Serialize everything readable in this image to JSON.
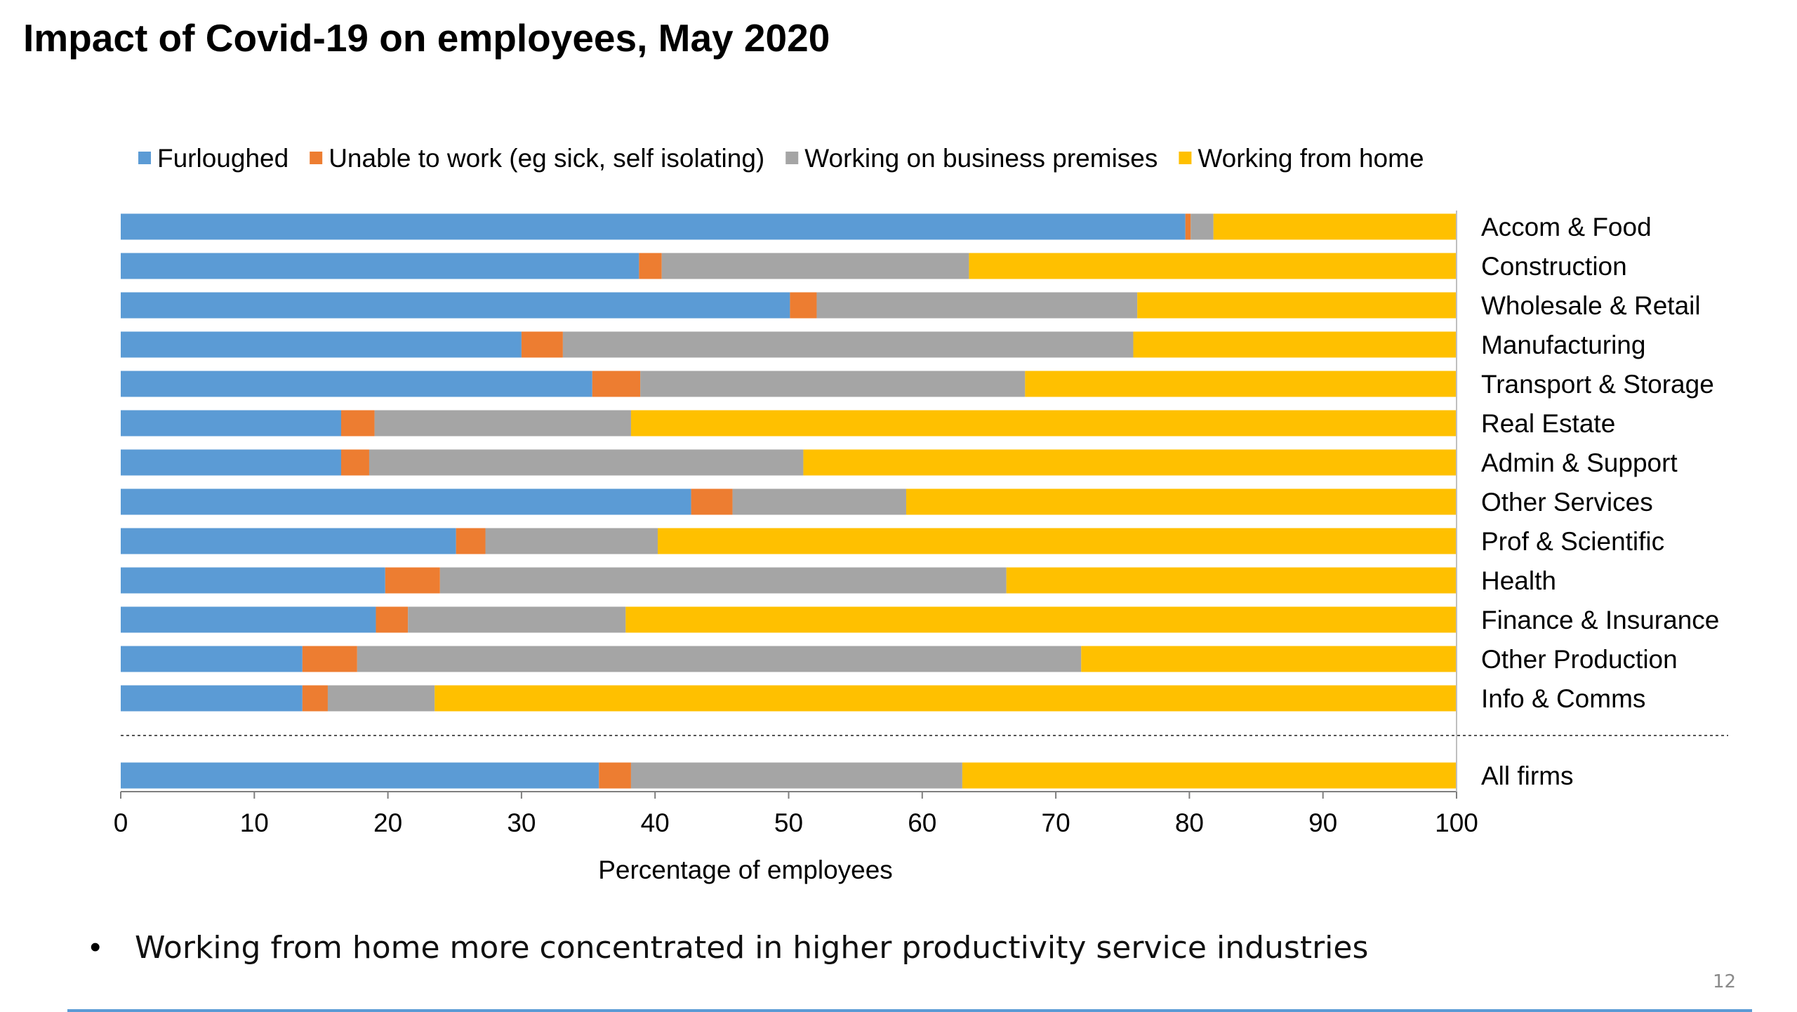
{
  "slide": {
    "title": "Impact of Covid-19 on employees, May 2020",
    "bullet_marker": "•",
    "bullet": "Working from home more concentrated in higher productivity service industries",
    "page_number": "12"
  },
  "chart_data": {
    "type": "bar",
    "orientation": "horizontal",
    "stacked": true,
    "title": "",
    "xlabel": "Percentage of employees",
    "ylabel": "",
    "xlim": [
      0,
      100
    ],
    "xticks": [
      0,
      10,
      20,
      30,
      40,
      50,
      60,
      70,
      80,
      90,
      100
    ],
    "legend_position": "top",
    "grid": false,
    "separator_before_last": true,
    "categories": [
      "Accom & Food",
      "Construction",
      "Wholesale & Retail",
      "Manufacturing",
      "Transport & Storage",
      "Real Estate",
      "Admin & Support",
      "Other Services",
      "Prof & Scientific",
      "Health",
      "Finance & Insurance",
      "Other Production",
      "Info & Comms",
      "All firms"
    ],
    "series": [
      {
        "name": "Furloughed",
        "color": "#5b9bd5",
        "values": [
          79.7,
          38.8,
          50.1,
          30.0,
          35.3,
          16.5,
          16.5,
          42.7,
          25.1,
          19.8,
          19.1,
          13.6,
          13.6,
          35.8
        ]
      },
      {
        "name": "Unable to work (eg sick, self isolating)",
        "color": "#ed7d31",
        "values": [
          0.4,
          1.7,
          2.0,
          3.1,
          3.6,
          2.5,
          2.1,
          3.1,
          2.2,
          4.1,
          2.4,
          4.1,
          1.9,
          2.4
        ]
      },
      {
        "name": "Working on business premises",
        "color": "#a5a5a5",
        "values": [
          1.7,
          23.0,
          24.0,
          42.7,
          28.8,
          19.2,
          32.5,
          13.0,
          12.9,
          42.4,
          16.3,
          54.2,
          8.0,
          24.8
        ]
      },
      {
        "name": "Working from home",
        "color": "#ffc000",
        "values": [
          18.2,
          36.5,
          23.9,
          24.2,
          32.3,
          61.8,
          48.9,
          41.2,
          59.8,
          33.7,
          62.2,
          28.1,
          76.5,
          37.0
        ]
      }
    ]
  }
}
